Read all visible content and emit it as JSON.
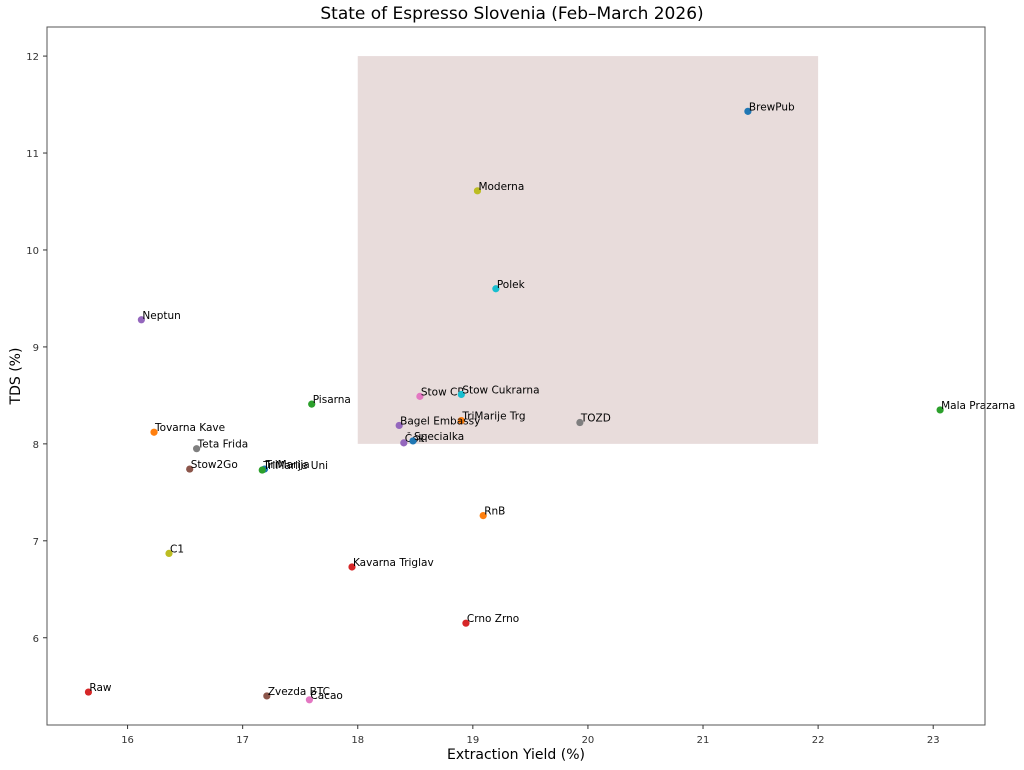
{
  "title": "State of Espresso Slovenia (Feb–March 2026)",
  "chart_data": {
    "type": "scatter",
    "title": "State of Espresso Slovenia (Feb–March 2026)",
    "xlabel": "Extraction Yield (%)",
    "ylabel": "TDS (%)",
    "xlim": [
      15.3,
      23.45
    ],
    "ylim": [
      5.1,
      12.3
    ],
    "xticks": [
      16,
      17,
      18,
      19,
      20,
      21,
      22,
      23
    ],
    "yticks": [
      6,
      7,
      8,
      9,
      10,
      11,
      12
    ],
    "grid": false,
    "legend": null,
    "shaded_region": {
      "x": [
        18,
        22
      ],
      "y": [
        8,
        12
      ],
      "color": "#e8dcdb"
    },
    "points": [
      {
        "name": "BrewPub",
        "x": 21.39,
        "y": 11.43,
        "color": "#1f77b4"
      },
      {
        "name": "Moderna",
        "x": 19.04,
        "y": 10.61,
        "color": "#bcbd22"
      },
      {
        "name": "Polek",
        "x": 19.2,
        "y": 9.6,
        "color": "#17becf"
      },
      {
        "name": "Neptun",
        "x": 16.12,
        "y": 9.28,
        "color": "#9467bd"
      },
      {
        "name": "Stow CR",
        "x": 18.54,
        "y": 8.49,
        "color": "#e377c2"
      },
      {
        "name": "Stow Cukrarna",
        "x": 18.9,
        "y": 8.51,
        "color": "#17becf"
      },
      {
        "name": "TriMarije Trg",
        "x": 18.9,
        "y": 8.24,
        "color": "#ff7f0e"
      },
      {
        "name": "Bagel Embassy",
        "x": 18.36,
        "y": 8.19,
        "color": "#9467bd"
      },
      {
        "name": "TOZD",
        "x": 19.93,
        "y": 8.22,
        "color": "#7f7f7f"
      },
      {
        "name": "Čoki",
        "x": 18.4,
        "y": 8.01,
        "color": "#9467bd"
      },
      {
        "name": "Specialka",
        "x": 18.48,
        "y": 8.03,
        "color": "#1f77b4"
      },
      {
        "name": "Mala Prazarna",
        "x": 23.06,
        "y": 8.35,
        "color": "#2ca02c"
      },
      {
        "name": "Pisarna",
        "x": 17.6,
        "y": 8.41,
        "color": "#2ca02c"
      },
      {
        "name": "Tovarna Kave",
        "x": 16.23,
        "y": 8.12,
        "color": "#ff7f0e"
      },
      {
        "name": "Teta Frida",
        "x": 16.6,
        "y": 7.95,
        "color": "#7f7f7f"
      },
      {
        "name": "Stow2Go",
        "x": 16.54,
        "y": 7.74,
        "color": "#8c564b"
      },
      {
        "name": "TriMarija",
        "x": 17.19,
        "y": 7.74,
        "color": "#1f77b4"
      },
      {
        "name": "TriMarije Uni",
        "x": 17.17,
        "y": 7.73,
        "color": "#2ca02c"
      },
      {
        "name": "RnB",
        "x": 19.09,
        "y": 7.26,
        "color": "#ff7f0e"
      },
      {
        "name": "C1",
        "x": 16.36,
        "y": 6.87,
        "color": "#bcbd22"
      },
      {
        "name": "Kavarna Triglav",
        "x": 17.95,
        "y": 6.73,
        "color": "#d62728"
      },
      {
        "name": "Crno Zrno",
        "x": 18.94,
        "y": 6.15,
        "color": "#d62728"
      },
      {
        "name": "Raw",
        "x": 15.66,
        "y": 5.44,
        "color": "#d62728"
      },
      {
        "name": "Zvezda BTC",
        "x": 17.21,
        "y": 5.4,
        "color": "#8c564b"
      },
      {
        "name": "Cacao",
        "x": 17.58,
        "y": 5.36,
        "color": "#e377c2"
      }
    ]
  }
}
